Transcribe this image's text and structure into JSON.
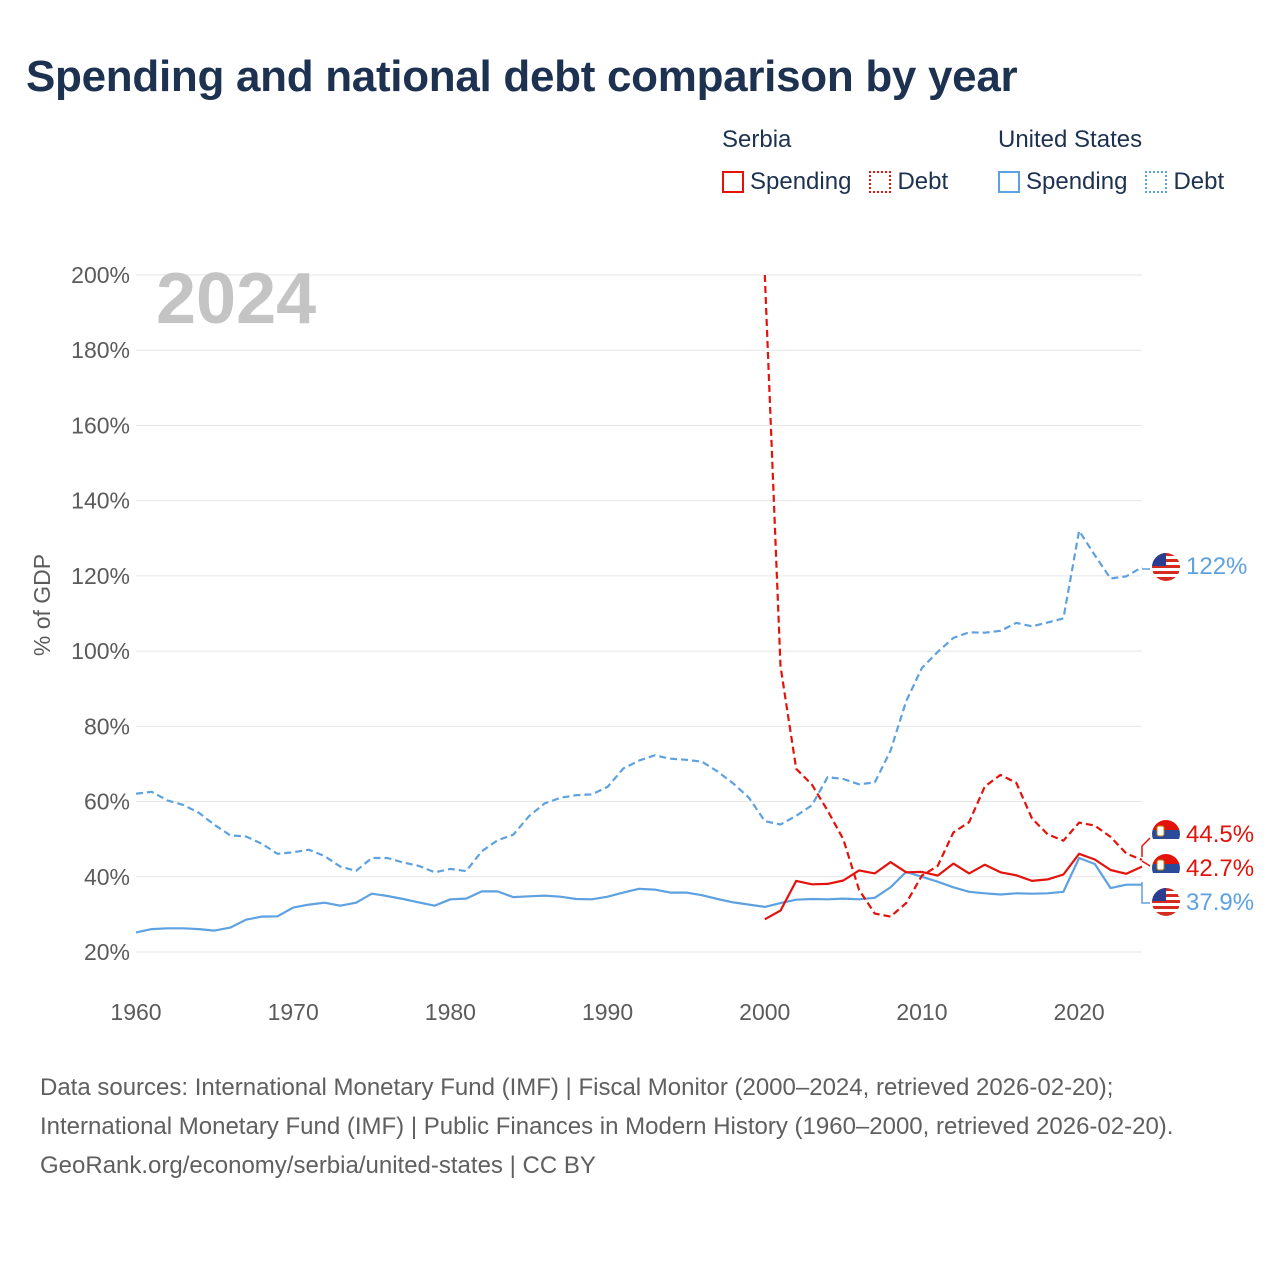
{
  "title": "Spending and national debt comparison by year",
  "legend": {
    "groups": [
      {
        "name": "Serbia",
        "color": "#e3120b",
        "items": [
          "Spending",
          "Debt"
        ]
      },
      {
        "name": "United States",
        "color": "#5ea1e0",
        "items": [
          "Spending",
          "Debt"
        ]
      }
    ]
  },
  "year_watermark": "2024",
  "end_labels": {
    "us_debt": "122%",
    "serbia_debt": "44.5%",
    "serbia_spending": "42.7%",
    "us_spending": "37.9%"
  },
  "footer": {
    "sources": "Data sources: International Monetary Fund (IMF) | Fiscal Monitor (2000–2024, retrieved 2026-02-20); International Monetary Fund (IMF) | Public Finances in Modern History (1960–2000, retrieved 2026-02-20).",
    "credit": "GeoRank.org/economy/serbia/united-states | CC BY"
  },
  "chart_data": {
    "type": "line",
    "title": "Spending and national debt comparison by year",
    "xlabel": "",
    "ylabel": "% of GDP",
    "xlim": [
      1960,
      2024
    ],
    "ylim": [
      20,
      200
    ],
    "yticks": [
      20,
      40,
      60,
      80,
      100,
      120,
      140,
      160,
      180,
      200
    ],
    "ytick_labels": [
      "20%",
      "40%",
      "60%",
      "80%",
      "100%",
      "120%",
      "140%",
      "160%",
      "180%",
      "200%"
    ],
    "xticks": [
      1960,
      1970,
      1980,
      1990,
      2000,
      2010,
      2020
    ],
    "xtick_labels": [
      "1960",
      "1970",
      "1980",
      "1990",
      "2000",
      "2010",
      "2020"
    ],
    "grid": true,
    "series": [
      {
        "name": "United States Spending",
        "country": "United States",
        "measure": "Spending",
        "color": "#5ea1e0",
        "dash": "solid",
        "x": [
          1960,
          1961,
          1962,
          1963,
          1964,
          1965,
          1966,
          1967,
          1968,
          1969,
          1970,
          1971,
          1972,
          1973,
          1974,
          1975,
          1976,
          1977,
          1978,
          1979,
          1980,
          1981,
          1982,
          1983,
          1984,
          1985,
          1986,
          1987,
          1988,
          1989,
          1990,
          1991,
          1992,
          1993,
          1994,
          1995,
          1996,
          1997,
          1998,
          1999,
          2000,
          2001,
          2002,
          2003,
          2004,
          2005,
          2006,
          2007,
          2008,
          2009,
          2010,
          2011,
          2012,
          2013,
          2014,
          2015,
          2016,
          2017,
          2018,
          2019,
          2020,
          2021,
          2022,
          2023,
          2024
        ],
        "y": [
          25.2,
          26.1,
          26.3,
          26.3,
          26.1,
          25.7,
          26.5,
          28.6,
          29.4,
          29.5,
          31.8,
          32.6,
          33.1,
          32.3,
          33.1,
          35.5,
          34.9,
          34.1,
          33.2,
          32.3,
          34.0,
          34.2,
          36.1,
          36.1,
          34.6,
          34.8,
          35.0,
          34.7,
          34.1,
          34.0,
          34.7,
          35.8,
          36.8,
          36.6,
          35.8,
          35.8,
          35.1,
          34.1,
          33.2,
          32.6,
          32.0,
          33.0,
          33.9,
          34.1,
          34.0,
          34.2,
          34.0,
          34.4,
          37.2,
          41.3,
          40.0,
          38.7,
          37.2,
          36.0,
          35.6,
          35.3,
          35.6,
          35.5,
          35.6,
          36.0,
          45.0,
          43.4,
          37.0,
          37.9,
          37.9
        ]
      },
      {
        "name": "United States Debt",
        "country": "United States",
        "measure": "Debt",
        "color": "#5ea1e0",
        "dash": "dashed",
        "x": [
          1960,
          1961,
          1962,
          1963,
          1964,
          1965,
          1966,
          1967,
          1968,
          1969,
          1970,
          1971,
          1972,
          1973,
          1974,
          1975,
          1976,
          1977,
          1978,
          1979,
          1980,
          1981,
          1982,
          1983,
          1984,
          1985,
          1986,
          1987,
          1988,
          1989,
          1990,
          1991,
          1992,
          1993,
          1994,
          1995,
          1996,
          1997,
          1998,
          1999,
          2000,
          2001,
          2002,
          2003,
          2004,
          2005,
          2006,
          2007,
          2008,
          2009,
          2010,
          2011,
          2012,
          2013,
          2014,
          2015,
          2016,
          2017,
          2018,
          2019,
          2020,
          2021,
          2022,
          2023,
          2024
        ],
        "y": [
          62.1,
          62.6,
          60.3,
          59.1,
          57.0,
          53.8,
          51.0,
          50.7,
          48.8,
          46.1,
          46.5,
          47.2,
          45.5,
          42.7,
          41.6,
          45.0,
          45.0,
          43.8,
          42.9,
          41.2,
          42.1,
          41.5,
          46.8,
          49.7,
          51.2,
          56.1,
          59.5,
          61.0,
          61.7,
          61.9,
          63.9,
          68.8,
          70.9,
          72.3,
          71.4,
          71.1,
          70.6,
          68.0,
          64.8,
          61.0,
          54.8,
          53.9,
          56.2,
          59.0,
          66.5,
          66.0,
          64.6,
          65.1,
          73.5,
          86.7,
          95.5,
          99.8,
          103.5,
          105.0,
          104.9,
          105.4,
          107.5,
          106.6,
          107.6,
          108.7,
          132.0,
          125.5,
          119.3,
          119.9,
          122.3
        ]
      },
      {
        "name": "Serbia Spending",
        "country": "Serbia",
        "measure": "Spending",
        "color": "#e3120b",
        "dash": "solid",
        "x": [
          2000,
          2001,
          2002,
          2003,
          2004,
          2005,
          2006,
          2007,
          2008,
          2009,
          2010,
          2011,
          2012,
          2013,
          2014,
          2015,
          2016,
          2017,
          2018,
          2019,
          2020,
          2021,
          2022,
          2023,
          2024
        ],
        "y": [
          28.7,
          31.0,
          38.9,
          38.0,
          38.1,
          39.0,
          41.7,
          40.9,
          43.9,
          41.2,
          41.3,
          40.3,
          43.5,
          40.9,
          43.2,
          41.2,
          40.4,
          38.9,
          39.3,
          40.6,
          46.1,
          44.6,
          41.8,
          40.8,
          42.7
        ]
      },
      {
        "name": "Serbia Debt",
        "country": "Serbia",
        "measure": "Debt",
        "color": "#e3120b",
        "dash": "dashed",
        "x": [
          2000,
          2001,
          2002,
          2003,
          2004,
          2005,
          2006,
          2007,
          2008,
          2009,
          2010,
          2011,
          2012,
          2013,
          2014,
          2015,
          2016,
          2017,
          2018,
          2019,
          2020,
          2021,
          2022,
          2023,
          2024
        ],
        "y": [
          201.0,
          96.0,
          68.7,
          64.5,
          57.6,
          50.0,
          36.5,
          30.2,
          29.4,
          33.0,
          40.3,
          42.9,
          51.8,
          54.5,
          64.0,
          67.1,
          65.0,
          55.5,
          51.3,
          49.6,
          54.4,
          53.6,
          50.6,
          46.2,
          44.5
        ]
      }
    ]
  }
}
